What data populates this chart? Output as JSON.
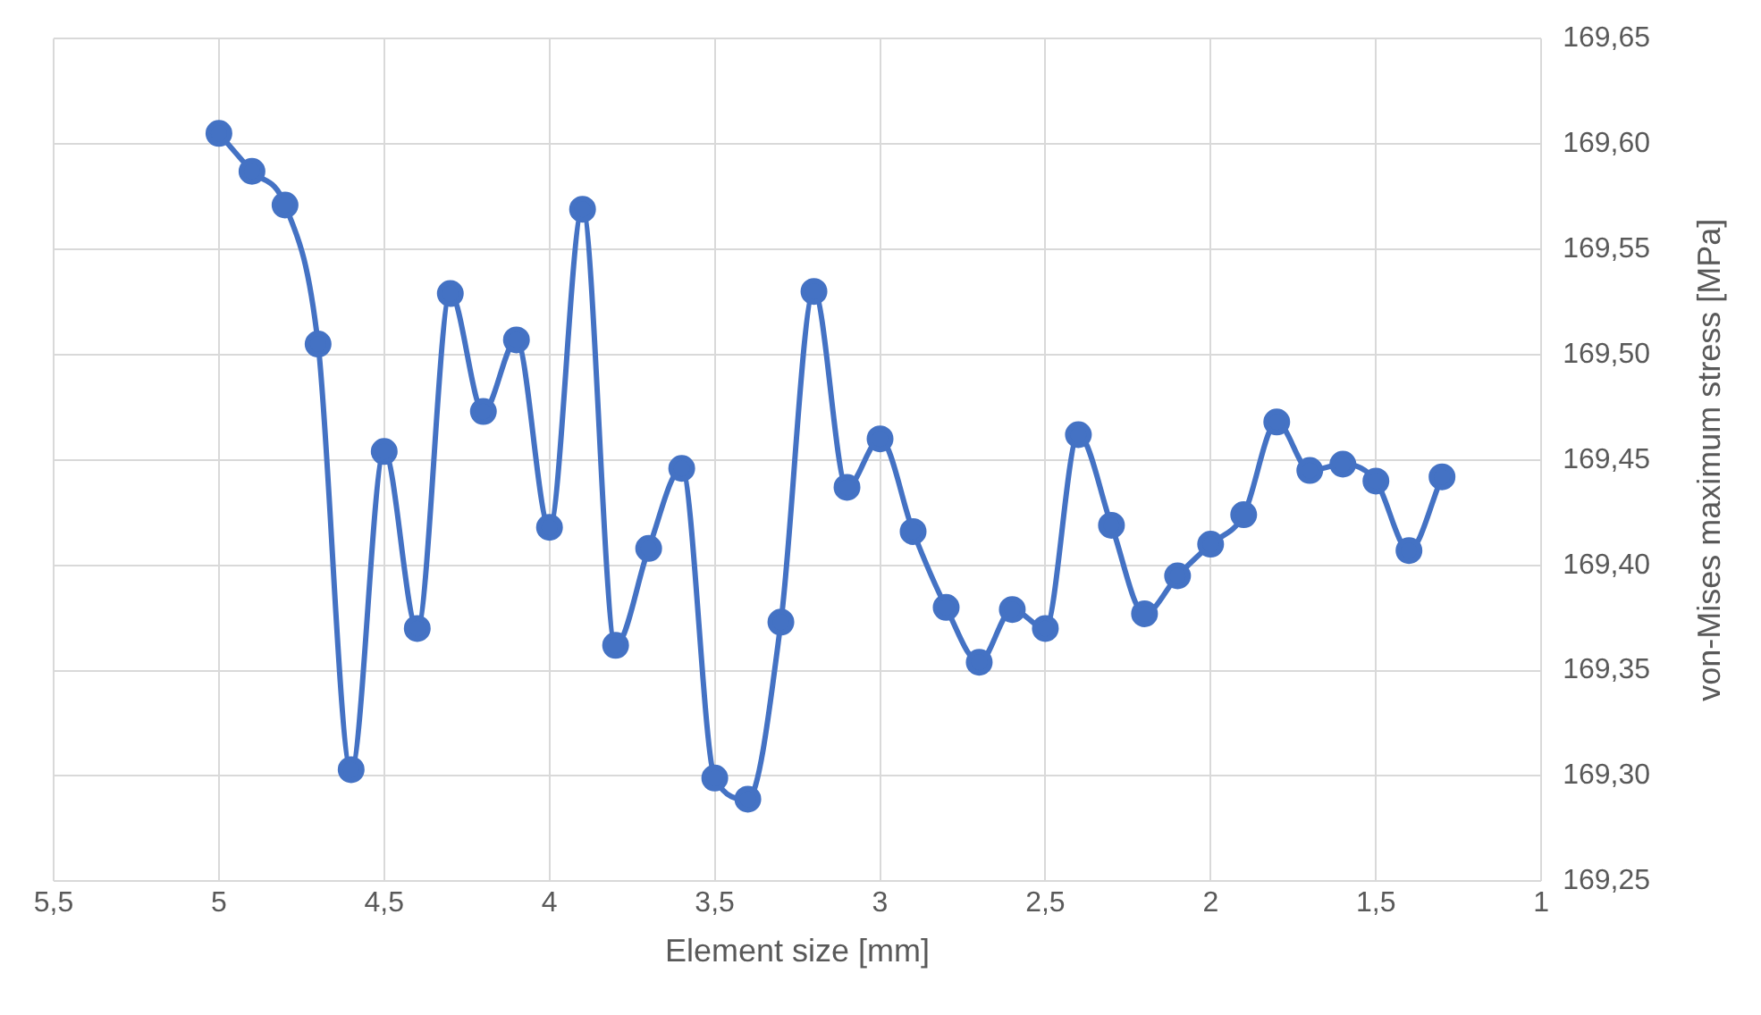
{
  "chart_data": {
    "type": "line",
    "xlabel": "Element size [mm]",
    "ylabel": "von-Mises maximum stress [MPa]",
    "x": [
      5,
      4.9,
      4.8,
      4.7,
      4.6,
      4.5,
      4.4,
      4.3,
      4.2,
      4.1,
      4,
      3.9,
      3.8,
      3.7,
      3.6,
      3.5,
      3.4,
      3.3,
      3.2,
      3.1,
      3,
      2.9,
      2.8,
      2.7,
      2.6,
      2.5,
      2.4,
      2.3,
      2.2,
      2.1,
      2,
      1.9,
      1.8,
      1.7,
      1.6,
      1.5,
      1.4,
      1.3
    ],
    "series": [
      {
        "color": "#4472c4",
        "values": [
          169.605,
          169.587,
          169.571,
          169.505,
          169.303,
          169.454,
          169.37,
          169.529,
          169.473,
          169.507,
          169.418,
          169.569,
          169.362,
          169.408,
          169.446,
          169.299,
          169.289,
          169.373,
          169.53,
          169.437,
          169.46,
          169.416,
          169.38,
          169.354,
          169.379,
          169.37,
          169.462,
          169.419,
          169.377,
          169.395,
          169.41,
          169.424,
          169.468,
          169.445,
          169.448,
          169.44,
          169.407,
          169.442
        ]
      }
    ],
    "xlim": [
      5.5,
      1
    ],
    "xticks": [
      {
        "value": 5.5,
        "label": "5,5"
      },
      5,
      {
        "value": 4.5,
        "label": "4,5"
      },
      4,
      {
        "value": 3.5,
        "label": "3,5"
      },
      3,
      {
        "value": 2.5,
        "label": "2,5"
      },
      2,
      {
        "value": 1.5,
        "label": "1,5"
      },
      1
    ],
    "ylim": [
      169.25,
      169.65
    ],
    "yticks": [
      {
        "value": 169.25,
        "label": "169,25"
      },
      {
        "value": 169.3,
        "label": "169,30"
      },
      {
        "value": 169.35,
        "label": "169,35"
      },
      {
        "value": 169.4,
        "label": "169,40"
      },
      {
        "value": 169.45,
        "label": "169,45"
      },
      {
        "value": 169.5,
        "label": "169,50"
      },
      {
        "value": 169.55,
        "label": "169,55"
      },
      {
        "value": 169.6,
        "label": "169,60"
      },
      {
        "value": 169.65,
        "label": "169,65"
      }
    ],
    "grid": true,
    "legend": false,
    "marker": "circle",
    "line_style": "solid"
  }
}
